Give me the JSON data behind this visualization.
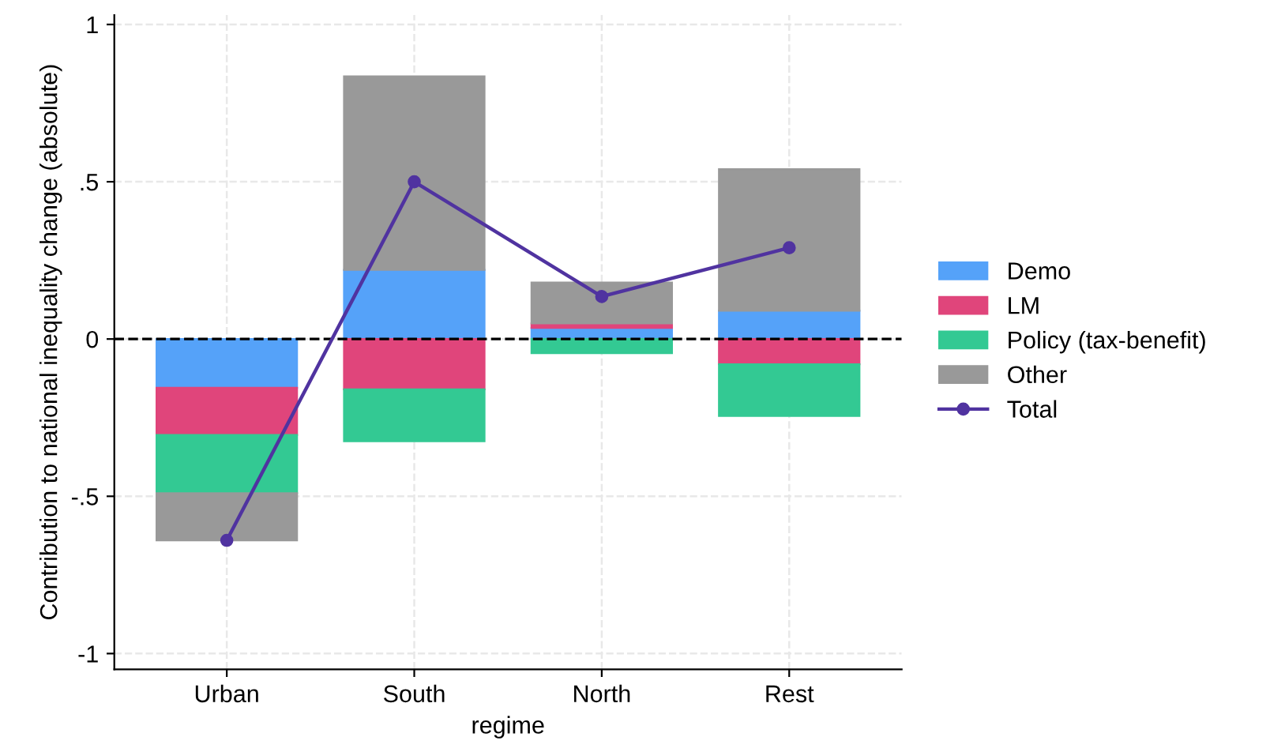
{
  "chart_data": {
    "type": "bar",
    "stacked": true,
    "xlabel": "regime",
    "ylabel": "Contribution to national inequality change (absolute)",
    "categories": [
      "Urban",
      "South",
      "North",
      "Rest"
    ],
    "series": [
      {
        "name": "Demo",
        "color": "#55a2f9",
        "values": [
          -0.155,
          0.22,
          0.035,
          0.09
        ]
      },
      {
        "name": "LM",
        "color": "#e0457b",
        "values": [
          -0.15,
          -0.16,
          0.015,
          -0.08
        ]
      },
      {
        "name": "Policy (tax-benefit)",
        "color": "#33c993",
        "values": [
          -0.185,
          -0.165,
          -0.045,
          -0.165
        ]
      },
      {
        "name": "Other",
        "color": "#999999",
        "values": [
          -0.15,
          0.615,
          0.13,
          0.45
        ]
      },
      {
        "name": "Total",
        "type": "line",
        "color": "#5033a0",
        "values": [
          -0.64,
          0.5,
          0.135,
          0.29
        ]
      }
    ],
    "ylim": [
      -1.05,
      1.03
    ],
    "yticks": [
      {
        "value": -1,
        "label": "-1"
      },
      {
        "value": -0.5,
        "label": "-.5"
      },
      0,
      {
        "value": 0.5,
        "label": ".5"
      },
      1
    ],
    "ref_lines": [
      {
        "axis": "y",
        "value": 0,
        "color": "#000000",
        "line_style": "dashed"
      }
    ],
    "grid": true,
    "legend": "right",
    "marker": "circle",
    "line_style": "solid"
  }
}
